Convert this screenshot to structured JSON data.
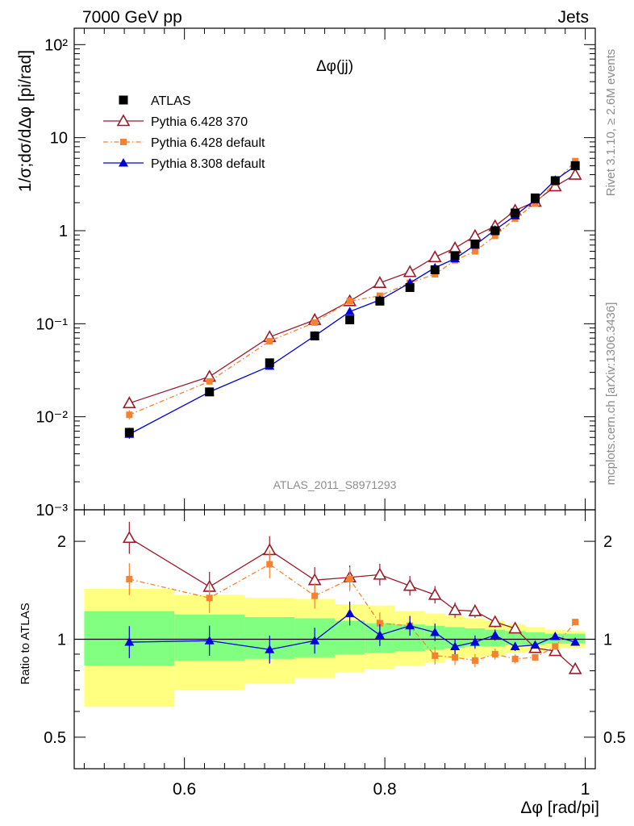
{
  "header": {
    "left": "7000 GeV pp",
    "right": "Jets"
  },
  "main_plot": {
    "title": "Δφ(jj)",
    "ylabel": "1/σ;dσ/dΔφ [pi/rad]",
    "analysis_id": "ATLAS_2011_S8971293",
    "y_tick_labels": [
      "10⁻³",
      "10⁻²",
      "10⁻¹",
      "1",
      "10",
      "10²"
    ]
  },
  "side_text": {
    "rivet": "Rivet 3.1.10, ≥ 2.6M events",
    "mcplots": "mcplots.cern.ch [arXiv:1306.3436]"
  },
  "ratio_plot": {
    "ylabel": "Ratio to ATLAS",
    "y_tick_labels": [
      "0.5",
      "1",
      "2"
    ]
  },
  "x_axis": {
    "label": "Δφ [rad/pi]",
    "tick_labels": [
      "0.6",
      "0.8",
      "1"
    ]
  },
  "legend": [
    {
      "label": "ATLAS",
      "color": "#000000",
      "marker": "square-filled"
    },
    {
      "label": "Pythia 6.428 370",
      "color": "#9b1b2a",
      "marker": "triangle-open"
    },
    {
      "label": "Pythia 6.428 default",
      "color": "#f58231",
      "marker": "square-filled-small"
    },
    {
      "label": "Pythia 8.308 default",
      "color": "#0000dd",
      "marker": "triangle-filled"
    }
  ],
  "colors": {
    "band_inner": "#80ff80",
    "band_outer": "#ffff80"
  },
  "chart_data": [
    {
      "type": "line",
      "scale": "log",
      "xlim": [
        0.49,
        1.01
      ],
      "ylim": [
        0.001,
        150
      ],
      "x": [
        0.545,
        0.625,
        0.685,
        0.73,
        0.765,
        0.795,
        0.825,
        0.85,
        0.87,
        0.89,
        0.91,
        0.93,
        0.95,
        0.97,
        0.99
      ],
      "series": [
        {
          "name": "ATLAS",
          "values": [
            0.0068,
            0.0185,
            0.038,
            0.074,
            0.11,
            0.175,
            0.245,
            0.38,
            0.54,
            0.72,
            1.0,
            1.55,
            2.25,
            3.45,
            5.0
          ]
        },
        {
          "name": "Pythia 6.428 370",
          "values": [
            0.014,
            0.027,
            0.072,
            0.11,
            0.175,
            0.275,
            0.36,
            0.52,
            0.65,
            0.88,
            1.12,
            1.65,
            2.05,
            3.0,
            4.0
          ]
        },
        {
          "name": "Pythia 6.428 default",
          "values": [
            0.0105,
            0.024,
            0.065,
            0.103,
            0.175,
            0.2,
            0.275,
            0.34,
            0.48,
            0.6,
            0.88,
            1.35,
            1.95,
            3.3,
            5.6
          ]
        },
        {
          "name": "Pythia 8.308 default",
          "values": [
            0.0065,
            0.0185,
            0.035,
            0.074,
            0.135,
            0.18,
            0.275,
            0.4,
            0.5,
            0.7,
            1.02,
            1.45,
            2.15,
            3.5,
            4.95
          ]
        }
      ]
    },
    {
      "type": "line",
      "scale": "log",
      "xlim": [
        0.49,
        1.01
      ],
      "ylim": [
        0.4,
        2.5
      ],
      "x": [
        0.545,
        0.625,
        0.685,
        0.73,
        0.765,
        0.795,
        0.825,
        0.85,
        0.87,
        0.89,
        0.91,
        0.93,
        0.95,
        0.97,
        0.99
      ],
      "reference_line": 1,
      "bands": {
        "edges": [
          0.5,
          0.59,
          0.66,
          0.71,
          0.75,
          0.78,
          0.81,
          0.84,
          0.86,
          0.88,
          0.9,
          0.92,
          0.94,
          0.96,
          0.98,
          1.0
        ],
        "inner": [
          [
            0.83,
            1.22
          ],
          [
            0.86,
            1.19
          ],
          [
            0.87,
            1.17
          ],
          [
            0.88,
            1.16
          ],
          [
            0.9,
            1.14
          ],
          [
            0.91,
            1.12
          ],
          [
            0.92,
            1.11
          ],
          [
            0.93,
            1.1
          ],
          [
            0.94,
            1.09
          ],
          [
            0.95,
            1.08
          ],
          [
            0.95,
            1.07
          ],
          [
            0.96,
            1.06
          ],
          [
            0.96,
            1.05
          ],
          [
            0.97,
            1.04
          ],
          [
            0.97,
            1.04
          ]
        ],
        "outer": [
          [
            0.62,
            1.43
          ],
          [
            0.7,
            1.37
          ],
          [
            0.73,
            1.34
          ],
          [
            0.76,
            1.33
          ],
          [
            0.79,
            1.28
          ],
          [
            0.81,
            1.27
          ],
          [
            0.83,
            1.22
          ],
          [
            0.85,
            1.2
          ],
          [
            0.87,
            1.18
          ],
          [
            0.88,
            1.16
          ],
          [
            0.89,
            1.14
          ],
          [
            0.91,
            1.11
          ],
          [
            0.92,
            1.09
          ],
          [
            0.94,
            1.07
          ],
          [
            0.94,
            1.06
          ]
        ]
      },
      "series": [
        {
          "name": "Pythia 6.428 370",
          "values": [
            2.05,
            1.45,
            1.88,
            1.52,
            1.55,
            1.58,
            1.46,
            1.37,
            1.23,
            1.22,
            1.13,
            1.08,
            0.94,
            0.92,
            0.81
          ]
        },
        {
          "name": "Pythia 6.428 default",
          "values": [
            1.53,
            1.34,
            1.7,
            1.36,
            1.53,
            1.12,
            1.1,
            0.89,
            0.88,
            0.86,
            0.9,
            0.87,
            0.88,
            0.95,
            1.13
          ]
        },
        {
          "name": "Pythia 8.308 default",
          "values": [
            0.98,
            0.99,
            0.93,
            0.99,
            1.2,
            1.03,
            1.1,
            1.05,
            0.95,
            0.98,
            1.03,
            0.95,
            0.96,
            1.02,
            0.98
          ]
        }
      ]
    }
  ]
}
